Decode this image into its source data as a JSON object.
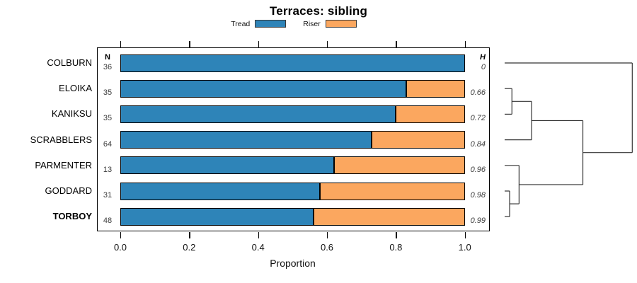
{
  "title": "Terraces: sibling",
  "legend": [
    {
      "label": "Tread",
      "color": "#2E84B8"
    },
    {
      "label": "Riser",
      "color": "#FBA75F"
    }
  ],
  "columns": {
    "n_header": "N",
    "h_header": "H"
  },
  "chart_data": {
    "type": "bar",
    "orientation": "horizontal",
    "stacked": true,
    "title": "Terraces: sibling",
    "xlabel": "Proportion",
    "xlim": [
      0,
      1
    ],
    "xticks": [
      0,
      0.2,
      0.4,
      0.6,
      0.8,
      1.0
    ],
    "xtick_labels": [
      "0.0",
      "0.2",
      "0.4",
      "0.6",
      "0.8",
      "1.0"
    ],
    "categories": [
      "COLBURN",
      "ELOIKA",
      "KANIKSU",
      "SCRABBLERS",
      "PARMENTER",
      "GODDARD",
      "TORBOY"
    ],
    "series": [
      {
        "name": "Tread",
        "color": "#2E84B8",
        "values": [
          1.0,
          0.83,
          0.8,
          0.73,
          0.62,
          0.58,
          0.56
        ]
      },
      {
        "name": "Riser",
        "color": "#FBA75F",
        "values": [
          0.0,
          0.17,
          0.2,
          0.27,
          0.38,
          0.42,
          0.44
        ]
      }
    ],
    "rows": [
      {
        "label": "COLBURN",
        "n": "36",
        "tread": 1.0,
        "riser": 0.0,
        "h": "0",
        "bold": false
      },
      {
        "label": "ELOIKA",
        "n": "35",
        "tread": 0.83,
        "riser": 0.17,
        "h": "0.66",
        "bold": false
      },
      {
        "label": "KANIKSU",
        "n": "35",
        "tread": 0.8,
        "riser": 0.2,
        "h": "0.72",
        "bold": false
      },
      {
        "label": "SCRABBLERS",
        "n": "64",
        "tread": 0.73,
        "riser": 0.27,
        "h": "0.84",
        "bold": false
      },
      {
        "label": "PARMENTER",
        "n": "13",
        "tread": 0.62,
        "riser": 0.38,
        "h": "0.96",
        "bold": false
      },
      {
        "label": "GODDARD",
        "n": "31",
        "tread": 0.58,
        "riser": 0.42,
        "h": "0.98",
        "bold": false
      },
      {
        "label": "TORBOY",
        "n": "48",
        "tread": 0.56,
        "riser": 0.44,
        "h": "0.99",
        "bold": true
      }
    ],
    "legend_position": "top"
  },
  "dendrogram": {
    "tree": {
      "height": 1.0,
      "children": [
        {
          "leaf": "COLBURN"
        },
        {
          "height": 0.613,
          "children": [
            {
              "height": 0.211,
              "children": [
                {
                  "height": 0.057,
                  "children": [
                    {
                      "leaf": "ELOIKA"
                    },
                    {
                      "leaf": "KANIKSU"
                    }
                  ]
                },
                {
                  "leaf": "SCRABBLERS"
                }
              ]
            },
            {
              "height": 0.113,
              "children": [
                {
                  "leaf": "PARMENTER"
                },
                {
                  "height": 0.039,
                  "children": [
                    {
                      "leaf": "GODDARD"
                    },
                    {
                      "leaf": "TORBOY"
                    }
                  ]
                }
              ]
            }
          ]
        }
      ]
    }
  }
}
